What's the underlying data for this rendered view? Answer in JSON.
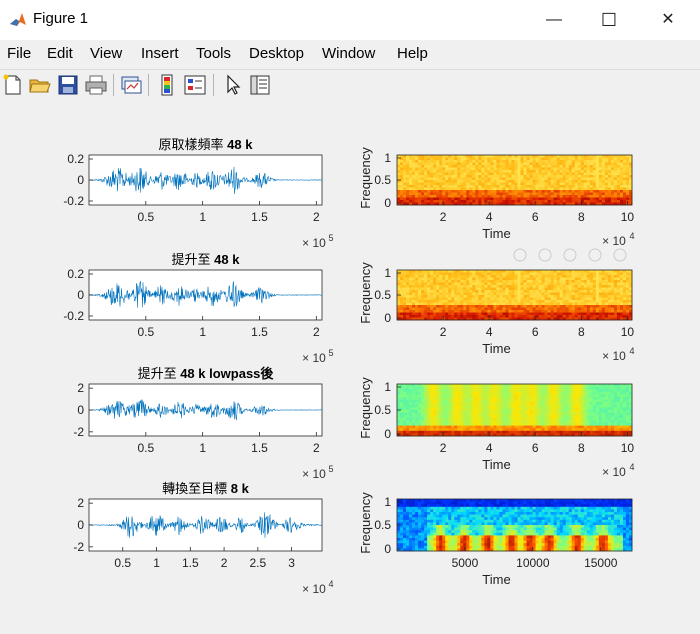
{
  "window": {
    "title": "Figure 1",
    "minimize_glyph": "—",
    "maximize_glyph": "☐",
    "close_glyph": "✕"
  },
  "menu": {
    "items": [
      "File",
      "Edit",
      "View",
      "Insert",
      "Tools",
      "Desktop",
      "Window",
      "Help"
    ]
  },
  "toolbar": {
    "icons": [
      "new-figure-icon",
      "open-file-icon",
      "save-icon",
      "print-icon",
      "link-plot-icon",
      "insert-colorbar-icon",
      "insert-legend-icon",
      "pointer-icon",
      "property-inspector-icon"
    ]
  },
  "colors": {
    "waveform": "#0072bd",
    "axes_bg": "#ffffff",
    "figure_bg": "#f0f0f0"
  },
  "plots": [
    {
      "waveform": {
        "title_cjk": "原取樣頻率",
        "title_rest": " 48 k",
        "yticks": [
          "0.2",
          "0",
          "-0.2"
        ],
        "xticks": [
          "0.5",
          "1",
          "1.5",
          "2"
        ],
        "exponent": "× 10",
        "exponent_power": "5"
      },
      "spectrogram": {
        "ylabel": "Frequency",
        "xlabel": "Time",
        "yticks": [
          "1",
          "0.5",
          "0"
        ],
        "xticks": [
          "2",
          "4",
          "6",
          "8",
          "10"
        ],
        "exponent": "× 10",
        "exponent_power": "4",
        "palette": "warm"
      }
    },
    {
      "waveform": {
        "title_cjk": "提升至",
        "title_rest": " 48 k",
        "yticks": [
          "0.2",
          "0",
          "-0.2"
        ],
        "xticks": [
          "0.5",
          "1",
          "1.5",
          "2"
        ],
        "exponent": "× 10",
        "exponent_power": "5"
      },
      "spectrogram": {
        "ylabel": "Frequency",
        "xlabel": "Time",
        "yticks": [
          "1",
          "0.5",
          "0"
        ],
        "xticks": [
          "2",
          "4",
          "6",
          "8",
          "10"
        ],
        "exponent": "× 10",
        "exponent_power": "4",
        "palette": "warm"
      }
    },
    {
      "waveform": {
        "title_cjk": "提升至",
        "title_rest": " 48 k lowpass後",
        "yticks": [
          "2",
          "0",
          "-2"
        ],
        "xticks": [
          "0.5",
          "1",
          "1.5",
          "2"
        ],
        "exponent": "× 10",
        "exponent_power": "5"
      },
      "spectrogram": {
        "ylabel": "Frequency",
        "xlabel": "Time",
        "yticks": [
          "1",
          "0.5",
          "0"
        ],
        "xticks": [
          "2",
          "4",
          "6",
          "8",
          "10"
        ],
        "exponent": "× 10",
        "exponent_power": "4",
        "palette": "lowpass"
      }
    },
    {
      "waveform": {
        "title_cjk": "轉換至目標",
        "title_rest": " 8 k",
        "yticks": [
          "2",
          "0",
          "-2"
        ],
        "xticks": [
          "0.5",
          "1",
          "1.5",
          "2",
          "2.5",
          "3"
        ],
        "exponent": "× 10",
        "exponent_power": "4"
      },
      "spectrogram": {
        "ylabel": "Frequency",
        "xlabel": "Time",
        "yticks": [
          "1",
          "0.5",
          "0"
        ],
        "xticks": [
          "5000",
          "10000",
          "15000"
        ],
        "exponent": "",
        "exponent_power": "",
        "palette": "jet"
      }
    }
  ]
}
